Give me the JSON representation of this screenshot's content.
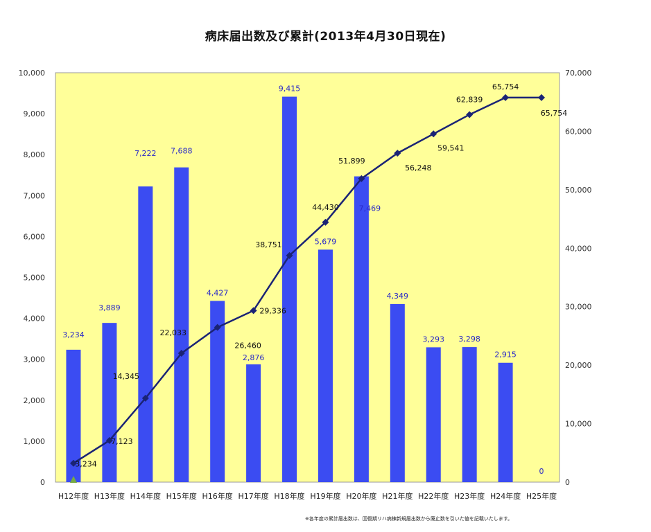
{
  "chart_data": {
    "type": "bar",
    "title": "病床届出数及び累計(2013年4月30日現在)",
    "categories": [
      "H12年度",
      "H13年度",
      "H14年度",
      "H15年度",
      "H16年度",
      "H17年度",
      "H18年度",
      "H19年度",
      "H20年度",
      "H21年度",
      "H22年度",
      "H23年度",
      "H24年度",
      "H25年度"
    ],
    "series": [
      {
        "type": "bar",
        "axis": "left",
        "color": "#3b4cf2",
        "values": [
          3234,
          3889,
          7222,
          7688,
          4427,
          2876,
          9415,
          5679,
          7469,
          4349,
          3293,
          3298,
          2915,
          0
        ]
      },
      {
        "type": "line",
        "axis": "right",
        "color": "#1a2375",
        "values": [
          3234,
          7123,
          14345,
          22033,
          26460,
          29336,
          38751,
          44430,
          51899,
          56248,
          59541,
          62839,
          65754,
          65754
        ]
      }
    ],
    "bar_labels": [
      "3,234",
      "3,889",
      "7,222",
      "7,688",
      "4,427",
      "2,876",
      "9,415",
      "5,679",
      "7,469",
      "4,349",
      "3,293",
      "3,298",
      "2,915",
      "0"
    ],
    "line_labels": [
      "3,234",
      "7,123",
      "14,345",
      "22,033",
      "26,460",
      "29,336",
      "38,751",
      "44,430",
      "51,899",
      "56,248",
      "59,541",
      "62,839",
      "65,754",
      "65,754"
    ],
    "y_left": {
      "range": [
        0,
        10000
      ],
      "ticks": [
        "0",
        "1,000",
        "2,000",
        "3,000",
        "4,000",
        "5,000",
        "6,000",
        "7,000",
        "8,000",
        "9,000",
        "10,000"
      ]
    },
    "y_right": {
      "range": [
        0,
        70000
      ],
      "ticks": [
        "0",
        "10,000",
        "20,000",
        "30,000",
        "40,000",
        "50,000",
        "60,000",
        "70,000"
      ]
    },
    "plot_background": "#ffff99",
    "grid": false,
    "legend": "none"
  },
  "footnote": "※各年度の累計届出数は、回復期リハ病棟新規届出数から廃止数を引いた値を記載いたします。"
}
